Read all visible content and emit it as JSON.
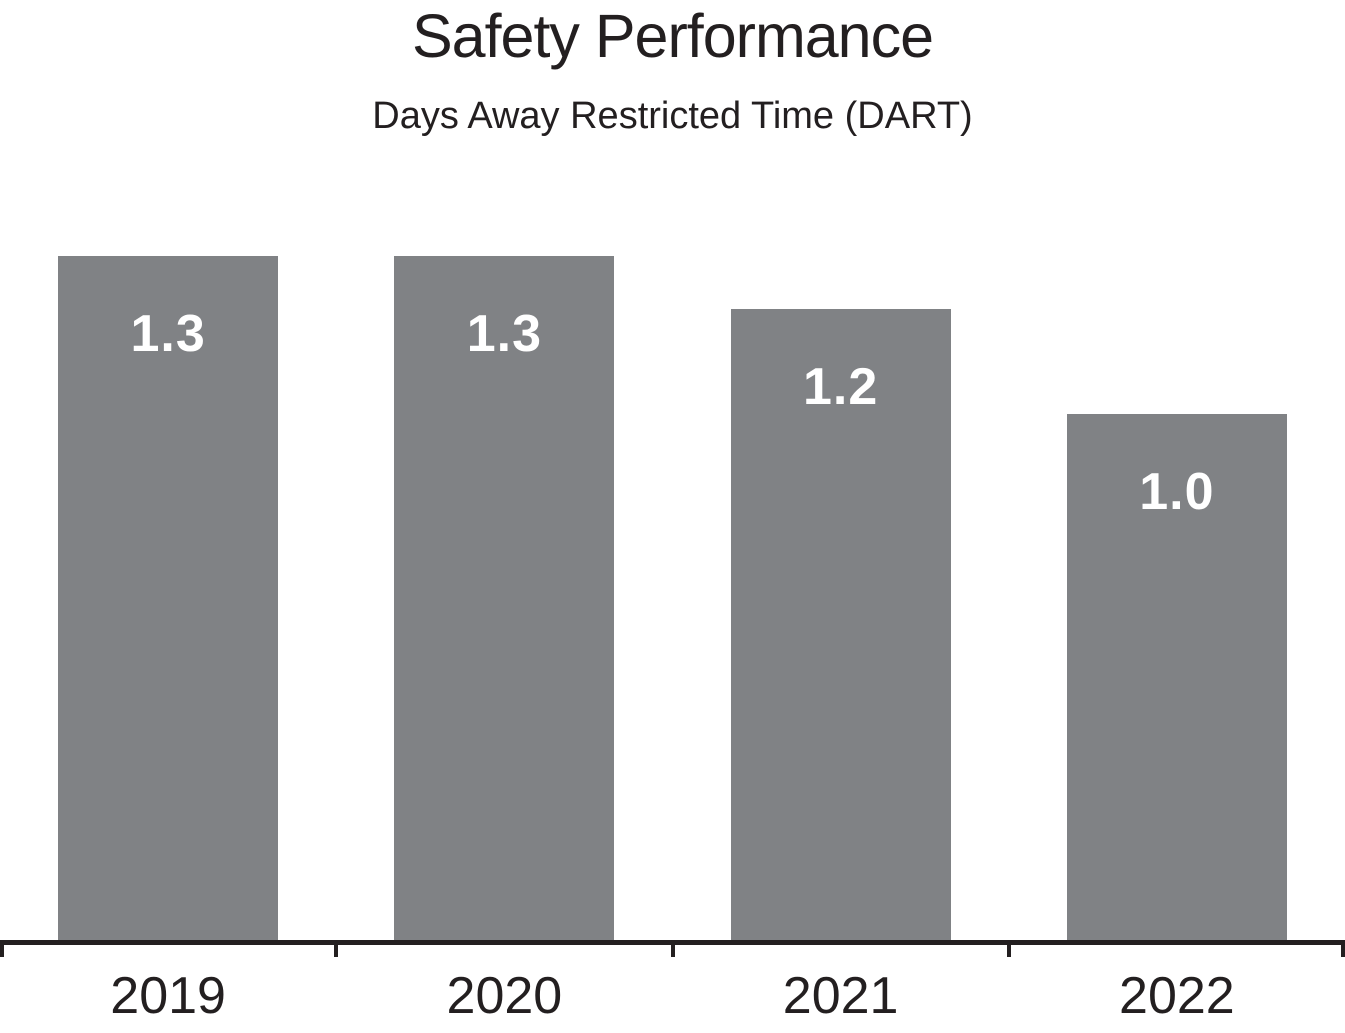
{
  "colors": {
    "bar": "#808285",
    "axis": "#231f20",
    "text": "#231f20",
    "value_label": "#ffffff",
    "background": "#ffffff"
  },
  "chart_data": {
    "type": "bar",
    "title": "Safety Performance",
    "subtitle": "Days Away Restricted Time (DART)",
    "categories": [
      "2019",
      "2020",
      "2021",
      "2022"
    ],
    "values": [
      1.3,
      1.3,
      1.2,
      1.0
    ],
    "bar_labels": [
      "1.3",
      "1.3",
      "1.2",
      "1.0"
    ],
    "xlabel": "",
    "ylabel": "",
    "ylim": [
      0,
      1.3
    ],
    "grid": false,
    "legend": "none",
    "value_label_position": "inside-top",
    "y_axis_shown": false
  }
}
